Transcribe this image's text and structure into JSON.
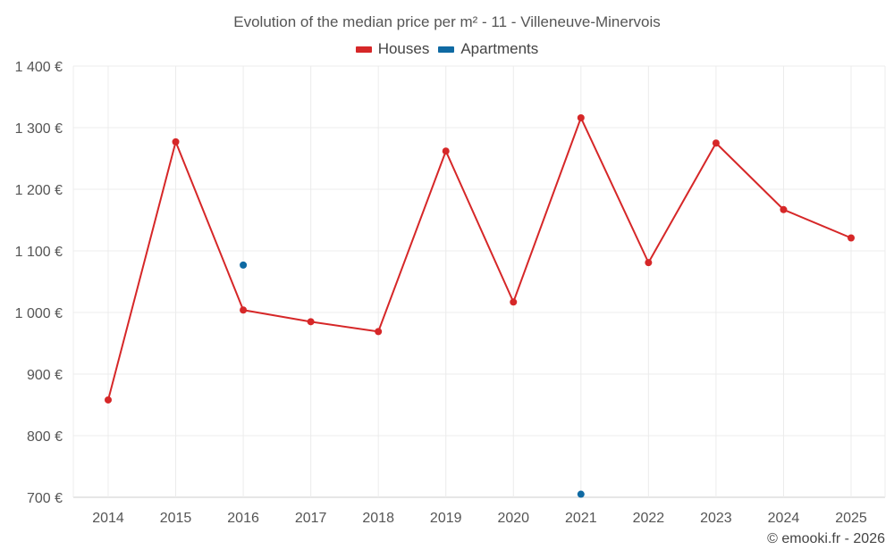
{
  "chart_data": {
    "type": "line",
    "title": "Evolution of the median price per m² - 11 - Villeneuve-Minervois",
    "categories": [
      "2014",
      "2015",
      "2016",
      "2017",
      "2018",
      "2019",
      "2020",
      "2021",
      "2022",
      "2023",
      "2024",
      "2025"
    ],
    "y_ticks": [
      700,
      800,
      900,
      1000,
      1100,
      1200,
      1300,
      1400
    ],
    "y_tick_labels": [
      "700 €",
      "800 €",
      "900 €",
      "1 000 €",
      "1 100 €",
      "1 200 €",
      "1 300 €",
      "1 400 €"
    ],
    "ylim": [
      700,
      1400
    ],
    "grid": true,
    "legend_position": "top-center",
    "series": [
      {
        "name": "Houses",
        "color": "#d62728",
        "values": [
          858,
          1277,
          1004,
          985,
          969,
          1262,
          1017,
          1316,
          1081,
          1275,
          1167,
          1121
        ]
      },
      {
        "name": "Apartments",
        "color": "#1f77b4",
        "values": [
          null,
          null,
          1077,
          null,
          null,
          null,
          null,
          705,
          null,
          null,
          null,
          null
        ]
      }
    ]
  },
  "legend": {
    "houses_label": "Houses",
    "apartments_label": "Apartments"
  },
  "credit": "© emooki.fr - 2026"
}
